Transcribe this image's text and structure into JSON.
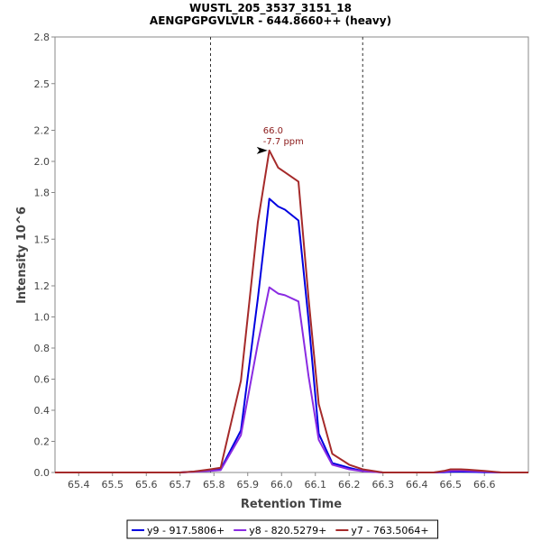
{
  "chart_data": {
    "type": "line",
    "title": "WUSTL_205_3537_3151_18",
    "subtitle": "AENGPGPGVLVLR - 644.8660++ (heavy)",
    "xlabel": "Retention Time",
    "ylabel": "Intensity 10^6",
    "xlim": [
      65.33,
      66.73
    ],
    "ylim": [
      0,
      2.8
    ],
    "x_ticks": [
      "65.4",
      "65.5",
      "65.6",
      "65.7",
      "65.8",
      "65.9",
      "66.0",
      "66.1",
      "66.2",
      "66.3",
      "66.4",
      "66.5",
      "66.6"
    ],
    "y_ticks": [
      "0.0",
      "0.2",
      "0.4",
      "0.6",
      "0.8",
      "1.0",
      "1.2",
      "1.5",
      "1.8",
      "2.0",
      "2.2",
      "2.5",
      "2.8"
    ],
    "grid": false,
    "legend_position": "bottom",
    "boundaries": [
      65.79,
      66.24
    ],
    "annotation": {
      "x": 65.964,
      "y": 2.07,
      "line1": "66.0",
      "line2": "-7.7 ppm",
      "color": "#8b1a1a"
    },
    "x": [
      65.33,
      65.4,
      65.5,
      65.6,
      65.7,
      65.74,
      65.79,
      65.82,
      65.88,
      65.93,
      65.964,
      65.99,
      66.01,
      66.05,
      66.08,
      66.11,
      66.15,
      66.2,
      66.24,
      66.3,
      66.35,
      66.4,
      66.45,
      66.48,
      66.5,
      66.53,
      66.55,
      66.6,
      66.65,
      66.73
    ],
    "series": [
      {
        "name": "y9 - 917.5806+",
        "color": "#0000e0",
        "values": [
          0,
          0,
          0,
          0,
          0,
          0.005,
          0.015,
          0.02,
          0.27,
          1.12,
          1.76,
          1.71,
          1.69,
          1.62,
          0.98,
          0.25,
          0.06,
          0.03,
          0.01,
          0,
          0,
          0,
          0,
          0.002,
          0.004,
          0.005,
          0.004,
          0.002,
          0,
          0
        ]
      },
      {
        "name": "y8 - 820.5279+",
        "color": "#8a2be2",
        "values": [
          0,
          0,
          0,
          0,
          0,
          0.004,
          0.01,
          0.015,
          0.24,
          0.83,
          1.19,
          1.15,
          1.14,
          1.1,
          0.62,
          0.21,
          0.05,
          0.02,
          0.008,
          0,
          0,
          0,
          0,
          0.005,
          0.01,
          0.012,
          0.01,
          0.005,
          0,
          0
        ]
      },
      {
        "name": "y7 - 763.5064+",
        "color": "#a52a2a",
        "values": [
          0,
          0,
          0,
          0,
          0,
          0.006,
          0.02,
          0.03,
          0.59,
          1.61,
          2.07,
          1.96,
          1.93,
          1.87,
          1.12,
          0.44,
          0.12,
          0.05,
          0.02,
          0,
          0,
          0,
          0,
          0.01,
          0.02,
          0.02,
          0.018,
          0.01,
          0,
          0
        ]
      }
    ]
  }
}
